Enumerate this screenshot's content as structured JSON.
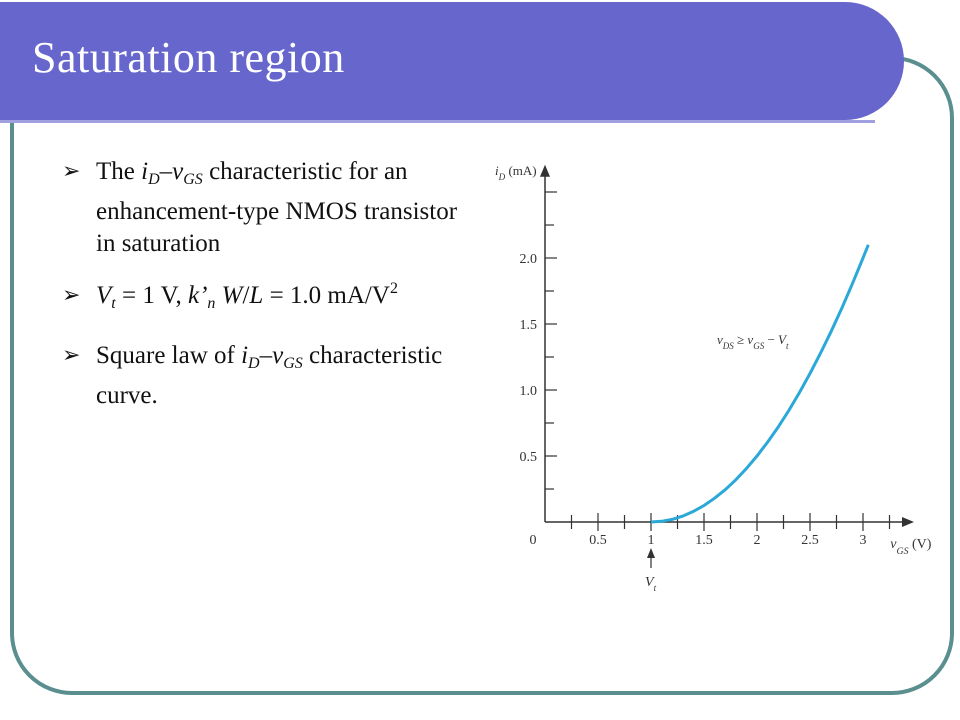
{
  "slide": {
    "title": "Saturation region",
    "accent_color": "#6666cc",
    "border_color": "#5b8f8f",
    "bullet_glyph": "➢",
    "bullets": [
      {
        "segments": [
          {
            "text": "The ",
            "style": "normal"
          },
          {
            "text": "i",
            "style": "italic"
          },
          {
            "text": "D",
            "style": "sub-italic"
          },
          {
            "text": "–",
            "style": "normal"
          },
          {
            "text": "v",
            "style": "italic"
          },
          {
            "text": "GS",
            "style": "sub-italic"
          },
          {
            "text": " characteristic for an enhancement-type NMOS transistor in saturation",
            "style": "normal"
          }
        ]
      },
      {
        "segments": [
          {
            "text": "V",
            "style": "italic"
          },
          {
            "text": "t",
            "style": "sub-italic"
          },
          {
            "text": " = 1 V, ",
            "style": "normal"
          },
          {
            "text": "k’",
            "style": "italic"
          },
          {
            "text": "n",
            "style": "sub-italic"
          },
          {
            "text": " ",
            "style": "normal"
          },
          {
            "text": "W",
            "style": "italic"
          },
          {
            "text": "/",
            "style": "normal"
          },
          {
            "text": "L",
            "style": "italic"
          },
          {
            "text": " = 1.0 mA/V",
            "style": "normal"
          },
          {
            "text": "2",
            "style": "sup"
          }
        ]
      },
      {
        "segments": [
          {
            "text": "Square law of ",
            "style": "normal"
          },
          {
            "text": "i",
            "style": "italic"
          },
          {
            "text": "D",
            "style": "sub-italic"
          },
          {
            "text": "–",
            "style": "normal"
          },
          {
            "text": "v",
            "style": "italic"
          },
          {
            "text": "GS",
            "style": "sub-italic"
          },
          {
            "text": " characteristic curve.",
            "style": "normal"
          }
        ]
      }
    ]
  },
  "chart_data": {
    "type": "line",
    "curve_color": "#2aa8d8",
    "xlabel": {
      "var": "v",
      "sub": "GS",
      "unit": " (V)"
    },
    "ylabel": {
      "var": "i",
      "sub": "D",
      "unit": " (mA)"
    },
    "xlim": [
      0,
      3.5
    ],
    "ylim": [
      0,
      2.6
    ],
    "x_ticks": [
      {
        "v": 0.5,
        "label": "0.5"
      },
      {
        "v": 1,
        "label": "1"
      },
      {
        "v": 1.5,
        "label": "1.5"
      },
      {
        "v": 2,
        "label": "2"
      },
      {
        "v": 2.5,
        "label": "2.5"
      },
      {
        "v": 3,
        "label": "3"
      }
    ],
    "x_minor_step": 0.25,
    "y_ticks": [
      {
        "v": 0.5,
        "label": "0.5"
      },
      {
        "v": 1.0,
        "label": "1.0"
      },
      {
        "v": 1.5,
        "label": "1.5"
      },
      {
        "v": 2.0,
        "label": "2.0"
      }
    ],
    "y_minor_step": 0.25,
    "origin_label": "0",
    "series": [
      {
        "x": [
          1.0,
          1.1,
          1.2,
          1.3,
          1.4,
          1.5,
          1.6,
          1.7,
          1.8,
          1.9,
          2.0,
          2.1,
          2.2,
          2.3,
          2.4,
          2.5,
          2.6,
          2.7,
          2.8,
          2.9,
          3.0,
          3.05
        ],
        "y": [
          0,
          0.005,
          0.02,
          0.045,
          0.08,
          0.125,
          0.18,
          0.245,
          0.32,
          0.405,
          0.5,
          0.605,
          0.72,
          0.845,
          0.98,
          1.125,
          1.28,
          1.445,
          1.62,
          1.805,
          2.0,
          2.1
        ]
      }
    ],
    "annotations": [
      {
        "id": "condition",
        "text": [
          {
            "t": "v",
            "s": "it"
          },
          {
            "t": "DS",
            "s": "sub"
          },
          {
            "t": " ≥ ",
            "s": "n"
          },
          {
            "t": "v",
            "s": "it"
          },
          {
            "t": "GS",
            "s": "sub"
          },
          {
            "t": " − ",
            "s": "n"
          },
          {
            "t": "V",
            "s": "it"
          },
          {
            "t": "t",
            "s": "sub"
          }
        ],
        "x": 2.0,
        "y": 1.35
      },
      {
        "id": "vt-marker",
        "text": [
          {
            "t": "V",
            "s": "it"
          },
          {
            "t": "t",
            "s": "sub"
          }
        ],
        "x": 1.0
      }
    ]
  }
}
